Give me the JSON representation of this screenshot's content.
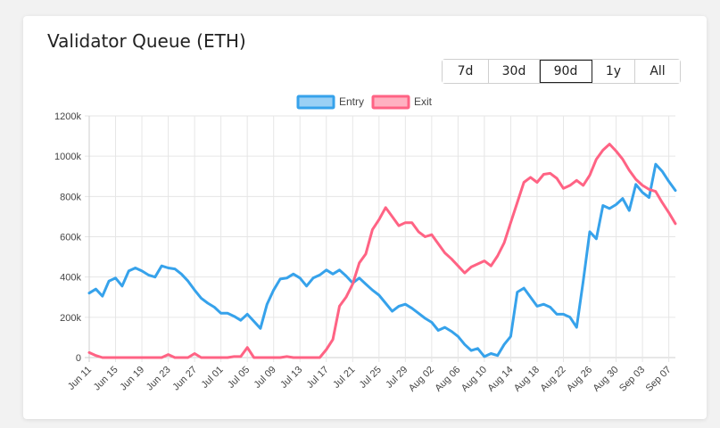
{
  "header": {
    "title": "Validator Queue (ETH)"
  },
  "range_buttons": [
    {
      "label": "7d",
      "active": false
    },
    {
      "label": "30d",
      "active": false
    },
    {
      "label": "90d",
      "active": true
    },
    {
      "label": "1y",
      "active": false
    },
    {
      "label": "All",
      "active": false
    }
  ],
  "chart_data": {
    "type": "line",
    "title": "Validator Queue (ETH)",
    "ylim": [
      0,
      1200000
    ],
    "y_ticks": [
      {
        "value": 0,
        "label": "0"
      },
      {
        "value": 200000,
        "label": "200k"
      },
      {
        "value": 400000,
        "label": "400k"
      },
      {
        "value": 600000,
        "label": "600k"
      },
      {
        "value": 800000,
        "label": "800k"
      },
      {
        "value": 1000000,
        "label": "1000k"
      },
      {
        "value": 1200000,
        "label": "1200k"
      }
    ],
    "x_tick_labels": [
      "Jun 11",
      "Jun 15",
      "Jun 19",
      "Jun 23",
      "Jun 27",
      "Jul 01",
      "Jul 05",
      "Jul 09",
      "Jul 13",
      "Jul 17",
      "Jul 21",
      "Jul 25",
      "Jul 29",
      "Aug 02",
      "Aug 06",
      "Aug 10",
      "Aug 14",
      "Aug 18",
      "Aug 22",
      "Aug 26",
      "Aug 30",
      "Sep 03",
      "Sep 07"
    ],
    "x_tick_every": 4,
    "grid": true,
    "legend_position": "top-center",
    "series": [
      {
        "name": "Entry",
        "color": "#36a2eb",
        "fill": "#9ad0f5",
        "values": [
          320000,
          340000,
          305000,
          380000,
          395000,
          355000,
          430000,
          445000,
          430000,
          410000,
          400000,
          455000,
          445000,
          440000,
          415000,
          380000,
          335000,
          295000,
          270000,
          250000,
          220000,
          220000,
          205000,
          185000,
          215000,
          180000,
          145000,
          265000,
          335000,
          390000,
          395000,
          415000,
          395000,
          355000,
          395000,
          410000,
          435000,
          415000,
          435000,
          405000,
          370000,
          395000,
          365000,
          335000,
          310000,
          270000,
          230000,
          255000,
          265000,
          245000,
          220000,
          195000,
          175000,
          135000,
          150000,
          130000,
          105000,
          65000,
          35000,
          45000,
          5000,
          20000,
          10000,
          65000,
          105000,
          325000,
          345000,
          300000,
          255000,
          265000,
          250000,
          215000,
          215000,
          200000,
          150000,
          380000,
          625000,
          590000,
          755000,
          740000,
          760000,
          790000,
          730000,
          860000,
          820000,
          795000,
          960000,
          925000,
          875000,
          830000
        ]
      },
      {
        "name": "Exit",
        "color": "#ff6384",
        "fill": "#ffb1c1",
        "values": [
          25000,
          10000,
          0,
          0,
          0,
          0,
          0,
          0,
          0,
          0,
          0,
          0,
          15000,
          0,
          0,
          0,
          20000,
          0,
          0,
          0,
          0,
          0,
          5000,
          5000,
          50000,
          0,
          0,
          0,
          0,
          0,
          5000,
          0,
          0,
          0,
          0,
          0,
          40000,
          90000,
          255000,
          300000,
          365000,
          470000,
          515000,
          635000,
          685000,
          745000,
          700000,
          655000,
          670000,
          670000,
          625000,
          600000,
          610000,
          565000,
          520000,
          490000,
          455000,
          420000,
          450000,
          465000,
          480000,
          455000,
          505000,
          570000,
          670000,
          770000,
          870000,
          895000,
          870000,
          910000,
          915000,
          890000,
          840000,
          855000,
          880000,
          855000,
          905000,
          985000,
          1030000,
          1060000,
          1025000,
          985000,
          930000,
          885000,
          855000,
          835000,
          825000,
          770000,
          720000,
          665000
        ]
      }
    ]
  }
}
